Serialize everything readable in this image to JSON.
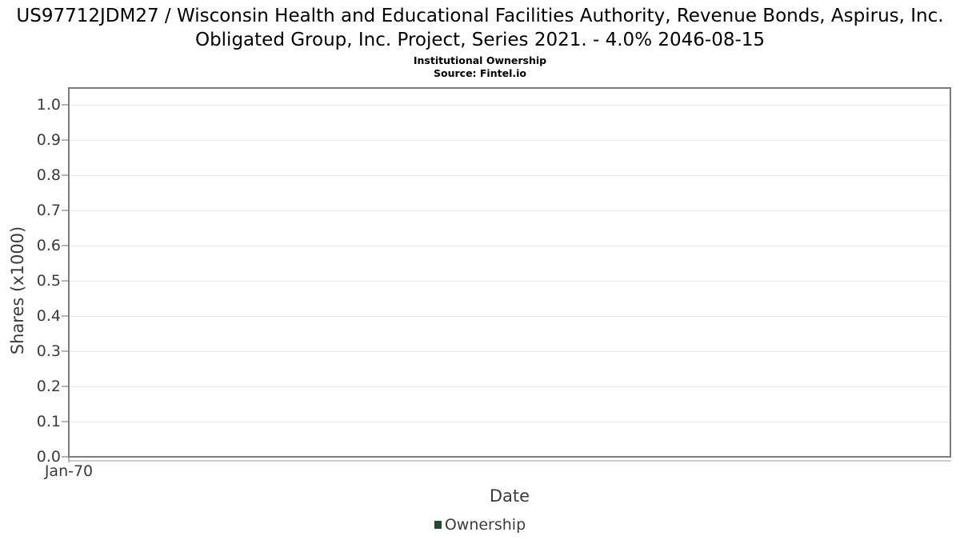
{
  "chart_data": {
    "type": "line",
    "title": "US97712JDM27 / Wisconsin Health and Educational Facilities Authority, Revenue Bonds, Aspirus, Inc. Obligated Group, Inc. Project, Series 2021. - 4.0% 2046-08-15",
    "subtitle": "Institutional Ownership",
    "source": "Source: Fintel.io",
    "xlabel": "Date",
    "ylabel": "Shares (x1000)",
    "ylim": [
      0.0,
      1.05
    ],
    "ytick_labels": [
      "1.0",
      "0.9",
      "0.8",
      "0.7",
      "0.6",
      "0.5",
      "0.4",
      "0.3",
      "0.2",
      "0.1",
      "0.0"
    ],
    "xtick_labels": [
      "Jan-70"
    ],
    "grid": true,
    "legend_position": "bottom-center",
    "series": [
      {
        "name": "Ownership",
        "color": "#1e4d2b",
        "points": []
      }
    ]
  },
  "colors": {
    "plot_border": "#7b7b7b",
    "gridline": "#e8e8e8",
    "tick_text": "#3b3b3b",
    "title_text": "#000000",
    "legend_swatch": "#1e4d2b"
  }
}
